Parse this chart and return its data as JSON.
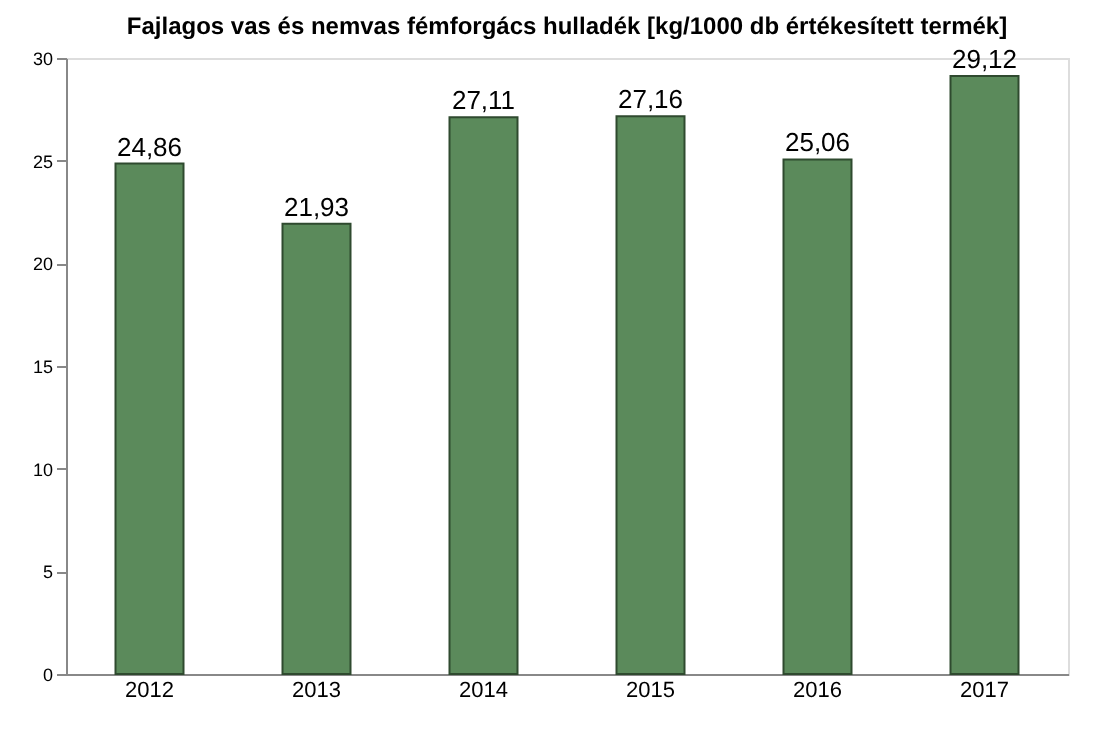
{
  "chart_data": {
    "type": "bar",
    "title": "Fajlagos vas és nemvas fémforgács hulladék [kg/1000 db értékesített termék]",
    "categories": [
      "2012",
      "2013",
      "2014",
      "2015",
      "2016",
      "2017"
    ],
    "values": [
      24.86,
      21.93,
      27.11,
      27.16,
      25.06,
      29.12
    ],
    "value_labels": [
      "24,86",
      "21,93",
      "27,11",
      "27,16",
      "25,06",
      "29,12"
    ],
    "color": "#5b8a5b",
    "ylim": [
      0,
      30
    ],
    "yticks": [
      0,
      5,
      10,
      15,
      20,
      25,
      30
    ],
    "grid": false
  }
}
